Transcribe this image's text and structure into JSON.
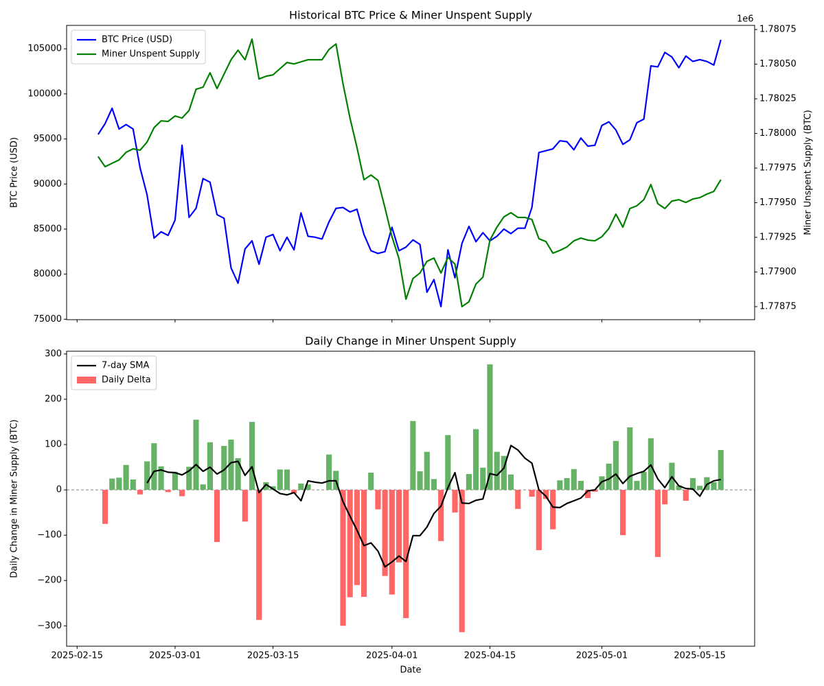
{
  "chart_data": [
    {
      "type": "line",
      "title": "Historical BTC Price & Miner Unspent Supply",
      "ylabel": "BTC Price (USD)",
      "y2label": "Miner Unspent Supply (BTC)",
      "y2_offset_label": "1e6",
      "x": [
        "2025-02-18",
        "2025-02-19",
        "2025-02-20",
        "2025-02-21",
        "2025-02-22",
        "2025-02-23",
        "2025-02-24",
        "2025-02-25",
        "2025-02-26",
        "2025-02-27",
        "2025-02-28",
        "2025-03-01",
        "2025-03-02",
        "2025-03-03",
        "2025-03-04",
        "2025-03-05",
        "2025-03-06",
        "2025-03-07",
        "2025-03-08",
        "2025-03-09",
        "2025-03-10",
        "2025-03-11",
        "2025-03-12",
        "2025-03-13",
        "2025-03-14",
        "2025-03-15",
        "2025-03-16",
        "2025-03-17",
        "2025-03-18",
        "2025-03-19",
        "2025-03-20",
        "2025-03-21",
        "2025-03-22",
        "2025-03-23",
        "2025-03-24",
        "2025-03-25",
        "2025-03-26",
        "2025-03-27",
        "2025-03-28",
        "2025-03-29",
        "2025-03-30",
        "2025-03-31",
        "2025-04-01",
        "2025-04-02",
        "2025-04-03",
        "2025-04-04",
        "2025-04-05",
        "2025-04-06",
        "2025-04-07",
        "2025-04-08",
        "2025-04-09",
        "2025-04-10",
        "2025-04-11",
        "2025-04-12",
        "2025-04-13",
        "2025-04-14",
        "2025-04-15",
        "2025-04-16",
        "2025-04-17",
        "2025-04-18",
        "2025-04-19",
        "2025-04-20",
        "2025-04-21",
        "2025-04-22",
        "2025-04-23",
        "2025-04-24",
        "2025-04-25",
        "2025-04-26",
        "2025-04-27",
        "2025-04-28",
        "2025-04-29",
        "2025-04-30",
        "2025-05-01",
        "2025-05-02",
        "2025-05-03",
        "2025-05-04",
        "2025-05-05",
        "2025-05-06",
        "2025-05-07",
        "2025-05-08",
        "2025-05-09",
        "2025-05-10",
        "2025-05-11",
        "2025-05-12",
        "2025-05-13",
        "2025-05-14",
        "2025-05-15",
        "2025-05-16",
        "2025-05-17",
        "2025-05-18"
      ],
      "series": [
        {
          "name": "BTC Price (USD)",
          "color": "#0000ff",
          "values": [
            95500,
            96700,
            98400,
            96100,
            96600,
            96100,
            91800,
            88800,
            84000,
            84700,
            84300,
            86000,
            94300,
            86300,
            87300,
            90600,
            90200,
            86600,
            86200,
            80700,
            79000,
            82800,
            83700,
            81100,
            84100,
            84400,
            82600,
            84100,
            82700,
            86800,
            84200,
            84100,
            83900,
            85800,
            87300,
            87400,
            86900,
            87200,
            84400,
            82600,
            82300,
            82500,
            85200,
            82600,
            83000,
            83800,
            83300,
            78000,
            79400,
            76400,
            82700,
            79600,
            83400,
            85300,
            83600,
            84600,
            83700,
            84200,
            85000,
            84500,
            85100,
            85100,
            87400,
            93500,
            93700,
            93900,
            94800,
            94700,
            93800,
            95100,
            94200,
            94300,
            96500,
            96900,
            96000,
            94400,
            94900,
            96800,
            97200,
            103100,
            103000,
            104600,
            104100,
            102900,
            104200,
            103600,
            103800,
            103600,
            103200,
            106000
          ]
        },
        {
          "name": "Miner Unspent Supply",
          "color": "#008000",
          "axis": "y2",
          "values": [
            1779834,
            1779760,
            1779785,
            1779809,
            1779864,
            1779889,
            1779879,
            1779938,
            1780042,
            1780091,
            1780087,
            1780126,
            1780111,
            1780166,
            1780319,
            1780334,
            1780438,
            1780324,
            1780428,
            1780532,
            1780601,
            1780532,
            1780681,
            1780393,
            1780413,
            1780423,
            1780468,
            1780512,
            1780502,
            1780517,
            1780532,
            1780532,
            1780532,
            1780606,
            1780646,
            1780359,
            1780111,
            1779898,
            1779666,
            1779700,
            1779661,
            1779463,
            1779255,
            1779097,
            1778804,
            1778953,
            1778993,
            1779077,
            1779101,
            1778993,
            1779106,
            1779057,
            1778750,
            1778785,
            1778913,
            1778963,
            1779230,
            1779324,
            1779398,
            1779428,
            1779394,
            1779394,
            1779379,
            1779240,
            1779220,
            1779136,
            1779156,
            1779181,
            1779225,
            1779245,
            1779230,
            1779225,
            1779255,
            1779314,
            1779418,
            1779324,
            1779458,
            1779478,
            1779522,
            1779631,
            1779493,
            1779458,
            1779512,
            1779522,
            1779502,
            1779527,
            1779537,
            1779562,
            1779582,
            1779666
          ]
        }
      ],
      "xlim": [
        "2025-02-13T12:00Z",
        "2025-05-22T20:00Z"
      ],
      "ylim": [
        74950,
        107600
      ],
      "yticks": [
        75000,
        80000,
        85000,
        90000,
        95000,
        100000,
        105000
      ],
      "y2lim": [
        1778656,
        1780780
      ],
      "y2ticks": [
        {
          "value": 1778750,
          "label": "1.77875"
        },
        {
          "value": 1779000,
          "label": "1.77900"
        },
        {
          "value": 1779250,
          "label": "1.77925"
        },
        {
          "value": 1779500,
          "label": "1.77950"
        },
        {
          "value": 1779750,
          "label": "1.77975"
        },
        {
          "value": 1780000,
          "label": "1.78000"
        },
        {
          "value": 1780250,
          "label": "1.78025"
        },
        {
          "value": 1780500,
          "label": "1.78050"
        },
        {
          "value": 1780750,
          "label": "1.78075"
        }
      ],
      "legend": "upper left"
    },
    {
      "type": "bar",
      "title": "Daily Change in Miner Unspent Supply",
      "xlabel": "Date",
      "ylabel": "Daily Change in Miner Supply (BTC)",
      "x": [
        "2025-02-19",
        "2025-02-20",
        "2025-02-21",
        "2025-02-22",
        "2025-02-23",
        "2025-02-24",
        "2025-02-25",
        "2025-02-26",
        "2025-02-27",
        "2025-02-28",
        "2025-03-01",
        "2025-03-02",
        "2025-03-03",
        "2025-03-04",
        "2025-03-05",
        "2025-03-06",
        "2025-03-07",
        "2025-03-08",
        "2025-03-09",
        "2025-03-10",
        "2025-03-11",
        "2025-03-12",
        "2025-03-13",
        "2025-03-14",
        "2025-03-15",
        "2025-03-16",
        "2025-03-17",
        "2025-03-18",
        "2025-03-19",
        "2025-03-20",
        "2025-03-21",
        "2025-03-22",
        "2025-03-23",
        "2025-03-24",
        "2025-03-25",
        "2025-03-26",
        "2025-03-27",
        "2025-03-28",
        "2025-03-29",
        "2025-03-30",
        "2025-03-31",
        "2025-04-01",
        "2025-04-02",
        "2025-04-03",
        "2025-04-04",
        "2025-04-05",
        "2025-04-06",
        "2025-04-07",
        "2025-04-08",
        "2025-04-09",
        "2025-04-10",
        "2025-04-11",
        "2025-04-12",
        "2025-04-13",
        "2025-04-14",
        "2025-04-15",
        "2025-04-16",
        "2025-04-17",
        "2025-04-18",
        "2025-04-19",
        "2025-04-20",
        "2025-04-21",
        "2025-04-22",
        "2025-04-23",
        "2025-04-24",
        "2025-04-25",
        "2025-04-26",
        "2025-04-27",
        "2025-04-28",
        "2025-04-29",
        "2025-04-30",
        "2025-05-01",
        "2025-05-02",
        "2025-05-03",
        "2025-05-04",
        "2025-05-05",
        "2025-05-06",
        "2025-05-07",
        "2025-05-08",
        "2025-05-09",
        "2025-05-10",
        "2025-05-11",
        "2025-05-12",
        "2025-05-13",
        "2025-05-14",
        "2025-05-15",
        "2025-05-16",
        "2025-05-17",
        "2025-05-18"
      ],
      "series": [
        {
          "name": "7-day SMA",
          "type": "line",
          "color": "#000000",
          "values": [
            null,
            null,
            null,
            null,
            null,
            null,
            15,
            41,
            44,
            39,
            38,
            33,
            42,
            56,
            41,
            50,
            35,
            44,
            60,
            63,
            32,
            51,
            -6,
            12,
            2,
            -8,
            -11,
            -6,
            -24,
            20,
            17,
            15,
            20,
            20,
            -26,
            -58,
            -89,
            -123,
            -117,
            -135,
            -170,
            -159,
            -146,
            -158,
            -101,
            -101,
            -82,
            -52,
            -36,
            5,
            38,
            -29,
            -30,
            -23,
            -20,
            36,
            32,
            48,
            98,
            88,
            70,
            59,
            0,
            -14,
            -38,
            -39,
            -30,
            -24,
            -18,
            -2,
            0,
            18,
            24,
            35,
            14,
            30,
            36,
            41,
            55,
            24,
            5,
            29,
            9,
            3,
            2,
            -14,
            12,
            20,
            23
          ]
        },
        {
          "name": "Daily Delta",
          "type": "bar",
          "color": "#ff6666",
          "positive_color": "#66b266",
          "values": [
            -75,
            25,
            27,
            55,
            23,
            -10,
            63,
            103,
            52,
            -5,
            40,
            -14,
            51,
            155,
            12,
            105,
            -115,
            97,
            111,
            70,
            -70,
            150,
            -287,
            17,
            8,
            45,
            45,
            -8,
            14,
            12,
            0,
            0,
            78,
            42,
            -300,
            -237,
            -210,
            -236,
            38,
            -43,
            -190,
            -231,
            -160,
            -283,
            152,
            41,
            84,
            24,
            -113,
            121,
            -50,
            -314,
            35,
            134,
            49,
            277,
            84,
            75,
            34,
            -42,
            0,
            -15,
            -133,
            -20,
            -87,
            21,
            26,
            46,
            20,
            -18,
            -4,
            30,
            58,
            108,
            -100,
            138,
            20,
            40,
            114,
            -148,
            -32,
            60,
            10,
            -24,
            26,
            9,
            28,
            17,
            88
          ]
        }
      ],
      "xlim": [
        "2025-02-13T12:00Z",
        "2025-05-22T20:00Z"
      ],
      "xticks": [
        "2025-02-15",
        "2025-03-01",
        "2025-03-15",
        "2025-04-01",
        "2025-04-15",
        "2025-05-01",
        "2025-05-15"
      ],
      "ylim": [
        -345,
        306
      ],
      "yticks": [
        {
          "value": -300,
          "label": "−300"
        },
        {
          "value": -200,
          "label": "−200"
        },
        {
          "value": -100,
          "label": "−100"
        },
        0,
        100,
        200,
        300
      ],
      "zero_line": true,
      "legend": "upper left"
    }
  ]
}
